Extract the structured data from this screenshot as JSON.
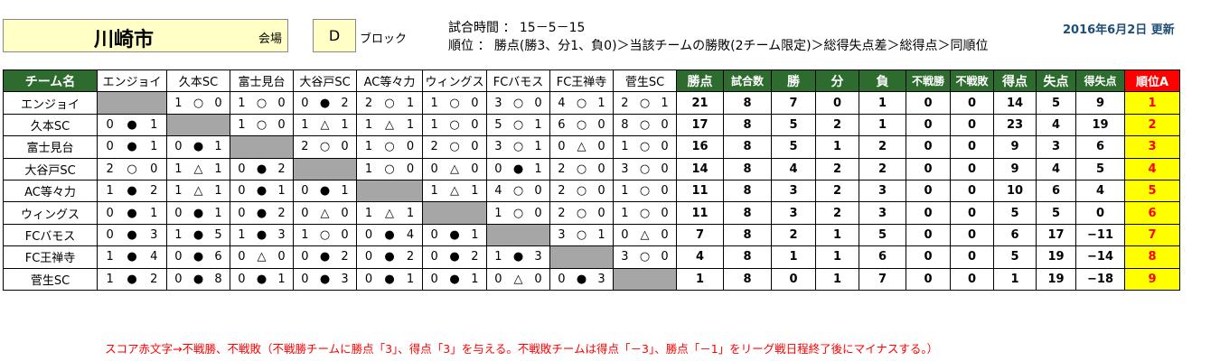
{
  "header": {
    "city": "川崎市",
    "venue_label": "会場",
    "block": "D",
    "block_label": "ブロック",
    "match_time": "試合時間 ： 15－5－15",
    "ranking_rule": "順位 ： 勝点(勝3、分1、負0)＞当該チームの勝敗(2チーム限定)＞総得失点差＞総得点＞同順位",
    "updated": "2016年6月2日 更新"
  },
  "columns": {
    "team": "チーム名",
    "opponents": [
      "エンジョイ",
      "久本SC",
      "富士見台",
      "大谷戸SC",
      "AC等々力",
      "ウィングス",
      "FCバモス",
      "FC王禅寺",
      "菅生SC"
    ],
    "stats": [
      "勝点",
      "試合数",
      "勝",
      "分",
      "負",
      "不戦勝",
      "不戦敗",
      "得点",
      "失点",
      "得失点",
      "順位A"
    ]
  },
  "rows": [
    {
      "team": "エンジョイ",
      "results": [
        null,
        [
          "1",
          "○",
          "0"
        ],
        [
          "1",
          "○",
          "0"
        ],
        [
          "0",
          "●",
          "2"
        ],
        [
          "2",
          "○",
          "1"
        ],
        [
          "1",
          "○",
          "0"
        ],
        [
          "3",
          "○",
          "0"
        ],
        [
          "4",
          "○",
          "1"
        ],
        [
          "2",
          "○",
          "1"
        ]
      ],
      "stats": [
        "21",
        "8",
        "7",
        "0",
        "1",
        "0",
        "0",
        "14",
        "5",
        "9"
      ],
      "rank": "1"
    },
    {
      "team": "久本SC",
      "results": [
        [
          "0",
          "●",
          "1"
        ],
        null,
        [
          "1",
          "○",
          "0"
        ],
        [
          "1",
          "△",
          "1"
        ],
        [
          "1",
          "△",
          "1"
        ],
        [
          "1",
          "○",
          "0"
        ],
        [
          "5",
          "○",
          "1"
        ],
        [
          "6",
          "○",
          "0"
        ],
        [
          "8",
          "○",
          "0"
        ]
      ],
      "stats": [
        "17",
        "8",
        "5",
        "2",
        "1",
        "0",
        "0",
        "23",
        "4",
        "19"
      ],
      "rank": "2"
    },
    {
      "team": "富士見台",
      "results": [
        [
          "0",
          "●",
          "1"
        ],
        [
          "0",
          "●",
          "1"
        ],
        null,
        [
          "2",
          "○",
          "0"
        ],
        [
          "1",
          "○",
          "0"
        ],
        [
          "2",
          "○",
          "0"
        ],
        [
          "3",
          "○",
          "1"
        ],
        [
          "0",
          "△",
          "0"
        ],
        [
          "1",
          "○",
          "0"
        ]
      ],
      "stats": [
        "16",
        "8",
        "5",
        "1",
        "2",
        "0",
        "0",
        "9",
        "3",
        "6"
      ],
      "rank": "3"
    },
    {
      "team": "大谷戸SC",
      "results": [
        [
          "2",
          "○",
          "0"
        ],
        [
          "1",
          "△",
          "1"
        ],
        [
          "0",
          "●",
          "2"
        ],
        null,
        [
          "1",
          "○",
          "0"
        ],
        [
          "0",
          "△",
          "0"
        ],
        [
          "0",
          "●",
          "1"
        ],
        [
          "2",
          "○",
          "0"
        ],
        [
          "3",
          "○",
          "0"
        ]
      ],
      "stats": [
        "14",
        "8",
        "4",
        "2",
        "2",
        "0",
        "0",
        "9",
        "4",
        "5"
      ],
      "rank": "4"
    },
    {
      "team": "AC等々力",
      "results": [
        [
          "1",
          "●",
          "2"
        ],
        [
          "1",
          "△",
          "1"
        ],
        [
          "0",
          "●",
          "1"
        ],
        [
          "0",
          "●",
          "1"
        ],
        null,
        [
          "1",
          "△",
          "1"
        ],
        [
          "4",
          "○",
          "0"
        ],
        [
          "2",
          "○",
          "0"
        ],
        [
          "1",
          "○",
          "0"
        ]
      ],
      "stats": [
        "11",
        "8",
        "3",
        "2",
        "3",
        "0",
        "0",
        "10",
        "6",
        "4"
      ],
      "rank": "5"
    },
    {
      "team": "ウィングス",
      "results": [
        [
          "0",
          "●",
          "1"
        ],
        [
          "0",
          "●",
          "1"
        ],
        [
          "0",
          "●",
          "2"
        ],
        [
          "0",
          "△",
          "0"
        ],
        [
          "1",
          "△",
          "1"
        ],
        null,
        [
          "1",
          "○",
          "0"
        ],
        [
          "2",
          "○",
          "0"
        ],
        [
          "1",
          "○",
          "0"
        ]
      ],
      "stats": [
        "11",
        "8",
        "3",
        "2",
        "3",
        "0",
        "0",
        "5",
        "5",
        "0"
      ],
      "rank": "6"
    },
    {
      "team": "FCバモス",
      "results": [
        [
          "0",
          "●",
          "3"
        ],
        [
          "1",
          "●",
          "5"
        ],
        [
          "1",
          "●",
          "3"
        ],
        [
          "1",
          "○",
          "0"
        ],
        [
          "0",
          "●",
          "4"
        ],
        [
          "0",
          "●",
          "1"
        ],
        null,
        [
          "3",
          "○",
          "1"
        ],
        [
          "0",
          "△",
          "0"
        ]
      ],
      "stats": [
        "7",
        "8",
        "2",
        "1",
        "5",
        "0",
        "0",
        "6",
        "17",
        "−11"
      ],
      "rank": "7"
    },
    {
      "team": "FC王禅寺",
      "results": [
        [
          "1",
          "●",
          "4"
        ],
        [
          "0",
          "●",
          "6"
        ],
        [
          "0",
          "△",
          "0"
        ],
        [
          "0",
          "●",
          "2"
        ],
        [
          "0",
          "●",
          "2"
        ],
        [
          "0",
          "●",
          "2"
        ],
        [
          "1",
          "●",
          "3"
        ],
        null,
        [
          "3",
          "○",
          "0"
        ]
      ],
      "stats": [
        "4",
        "8",
        "1",
        "1",
        "6",
        "0",
        "0",
        "5",
        "19",
        "−14"
      ],
      "rank": "8"
    },
    {
      "team": "菅生SC",
      "results": [
        [
          "1",
          "●",
          "2"
        ],
        [
          "0",
          "●",
          "8"
        ],
        [
          "0",
          "●",
          "1"
        ],
        [
          "0",
          "●",
          "3"
        ],
        [
          "0",
          "●",
          "1"
        ],
        [
          "0",
          "●",
          "1"
        ],
        [
          "0",
          "△",
          "0"
        ],
        [
          "0",
          "●",
          "3"
        ],
        null
      ],
      "stats": [
        "1",
        "8",
        "0",
        "1",
        "7",
        "0",
        "0",
        "1",
        "19",
        "−18"
      ],
      "rank": "9"
    }
  ],
  "note": "スコア赤文字→不戦勝、不戦敗（不戦勝チームに勝点「3」、得点「3」を与える。不戦敗チームは得点「－3」、勝点「－1」をリーグ戦日程終了後にマイナスする。）"
}
